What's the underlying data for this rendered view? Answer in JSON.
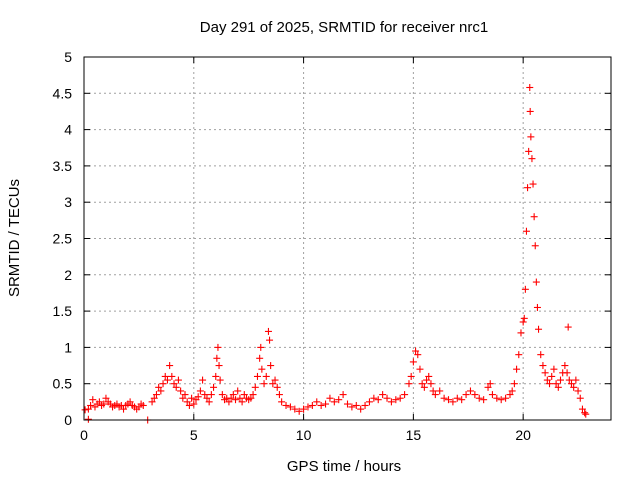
{
  "chart_data": {
    "type": "scatter",
    "title": "Day 291 of 2025, SRMTID for receiver nrc1",
    "xlabel": "GPS time / hours",
    "ylabel": "SRMTID / TECUs",
    "xlim": [
      0,
      24
    ],
    "ylim": [
      0,
      5
    ],
    "xticks": [
      0,
      5,
      10,
      15,
      20
    ],
    "xtick_labels": [
      "0",
      "5",
      "10",
      "15",
      "20"
    ],
    "yticks": [
      0,
      0.5,
      1,
      1.5,
      2,
      2.5,
      3,
      3.5,
      4,
      4.5,
      5
    ],
    "ytick_labels": [
      "0",
      "0.5",
      "1",
      "1.5",
      "2",
      "2.5",
      "3",
      "3.5",
      "4",
      "4.5",
      "5"
    ],
    "grid": true,
    "marker": "+",
    "series": [
      {
        "name": "nrc1",
        "color": "#ff0000",
        "points": [
          [
            0.05,
            0.14
          ],
          [
            0.2,
            0.15
          ],
          [
            0.3,
            0.2
          ],
          [
            0.4,
            0.28
          ],
          [
            0.5,
            0.18
          ],
          [
            0.6,
            0.22
          ],
          [
            0.7,
            0.25
          ],
          [
            0.8,
            0.2
          ],
          [
            0.9,
            0.22
          ],
          [
            1.0,
            0.3
          ],
          [
            1.1,
            0.25
          ],
          [
            1.2,
            0.22
          ],
          [
            1.3,
            0.18
          ],
          [
            1.4,
            0.2
          ],
          [
            1.5,
            0.22
          ],
          [
            1.6,
            0.18
          ],
          [
            1.7,
            0.2
          ],
          [
            1.8,
            0.15
          ],
          [
            1.9,
            0.2
          ],
          [
            2.0,
            0.22
          ],
          [
            2.1,
            0.25
          ],
          [
            2.2,
            0.2
          ],
          [
            2.3,
            0.18
          ],
          [
            2.4,
            0.15
          ],
          [
            2.5,
            0.18
          ],
          [
            2.6,
            0.22
          ],
          [
            2.7,
            0.2
          ],
          [
            0.2,
            0.01
          ],
          [
            2.9,
            0.0
          ],
          [
            3.1,
            0.25
          ],
          [
            3.2,
            0.3
          ],
          [
            3.3,
            0.35
          ],
          [
            3.4,
            0.45
          ],
          [
            3.5,
            0.4
          ],
          [
            3.6,
            0.5
          ],
          [
            3.7,
            0.6
          ],
          [
            3.8,
            0.55
          ],
          [
            3.9,
            0.75
          ],
          [
            4.0,
            0.6
          ],
          [
            4.1,
            0.5
          ],
          [
            4.2,
            0.45
          ],
          [
            4.3,
            0.55
          ],
          [
            4.4,
            0.4
          ],
          [
            4.5,
            0.3
          ],
          [
            4.6,
            0.35
          ],
          [
            4.7,
            0.25
          ],
          [
            4.8,
            0.2
          ],
          [
            4.9,
            0.3
          ],
          [
            5.0,
            0.22
          ],
          [
            5.1,
            0.28
          ],
          [
            5.2,
            0.32
          ],
          [
            5.3,
            0.4
          ],
          [
            5.4,
            0.55
          ],
          [
            5.5,
            0.35
          ],
          [
            5.6,
            0.3
          ],
          [
            5.7,
            0.25
          ],
          [
            5.8,
            0.35
          ],
          [
            5.9,
            0.45
          ],
          [
            6.0,
            0.6
          ],
          [
            6.05,
            0.85
          ],
          [
            6.1,
            1.0
          ],
          [
            6.15,
            0.75
          ],
          [
            6.2,
            0.55
          ],
          [
            6.3,
            0.35
          ],
          [
            6.4,
            0.28
          ],
          [
            6.5,
            0.3
          ],
          [
            6.6,
            0.25
          ],
          [
            6.7,
            0.3
          ],
          [
            6.8,
            0.35
          ],
          [
            6.9,
            0.28
          ],
          [
            7.0,
            0.4
          ],
          [
            7.1,
            0.3
          ],
          [
            7.2,
            0.25
          ],
          [
            7.3,
            0.35
          ],
          [
            7.4,
            0.3
          ],
          [
            7.5,
            0.28
          ],
          [
            7.6,
            0.3
          ],
          [
            7.7,
            0.35
          ],
          [
            7.8,
            0.45
          ],
          [
            7.9,
            0.6
          ],
          [
            8.0,
            0.85
          ],
          [
            8.05,
            1.0
          ],
          [
            8.1,
            0.7
          ],
          [
            8.2,
            0.5
          ],
          [
            8.3,
            0.6
          ],
          [
            8.4,
            1.22
          ],
          [
            8.45,
            1.1
          ],
          [
            8.5,
            0.75
          ],
          [
            8.6,
            0.5
          ],
          [
            8.7,
            0.55
          ],
          [
            8.8,
            0.45
          ],
          [
            8.9,
            0.35
          ],
          [
            9.0,
            0.25
          ],
          [
            9.2,
            0.2
          ],
          [
            9.4,
            0.18
          ],
          [
            9.6,
            0.15
          ],
          [
            9.8,
            0.12
          ],
          [
            10.0,
            0.15
          ],
          [
            10.2,
            0.18
          ],
          [
            10.4,
            0.2
          ],
          [
            10.6,
            0.25
          ],
          [
            10.8,
            0.2
          ],
          [
            11.0,
            0.22
          ],
          [
            11.2,
            0.3
          ],
          [
            11.4,
            0.25
          ],
          [
            11.6,
            0.28
          ],
          [
            11.8,
            0.35
          ],
          [
            12.0,
            0.22
          ],
          [
            12.2,
            0.18
          ],
          [
            12.4,
            0.2
          ],
          [
            12.6,
            0.15
          ],
          [
            12.8,
            0.2
          ],
          [
            13.0,
            0.25
          ],
          [
            13.2,
            0.3
          ],
          [
            13.4,
            0.28
          ],
          [
            13.6,
            0.35
          ],
          [
            13.8,
            0.3
          ],
          [
            14.0,
            0.25
          ],
          [
            14.2,
            0.28
          ],
          [
            14.4,
            0.3
          ],
          [
            14.6,
            0.35
          ],
          [
            14.8,
            0.5
          ],
          [
            14.9,
            0.6
          ],
          [
            15.0,
            0.8
          ],
          [
            15.1,
            0.95
          ],
          [
            15.2,
            0.9
          ],
          [
            15.3,
            0.7
          ],
          [
            15.4,
            0.5
          ],
          [
            15.5,
            0.45
          ],
          [
            15.6,
            0.55
          ],
          [
            15.7,
            0.6
          ],
          [
            15.8,
            0.5
          ],
          [
            15.9,
            0.4
          ],
          [
            16.0,
            0.35
          ],
          [
            16.2,
            0.4
          ],
          [
            16.4,
            0.3
          ],
          [
            16.6,
            0.28
          ],
          [
            16.8,
            0.25
          ],
          [
            17.0,
            0.3
          ],
          [
            17.2,
            0.28
          ],
          [
            17.4,
            0.35
          ],
          [
            17.6,
            0.4
          ],
          [
            17.8,
            0.35
          ],
          [
            18.0,
            0.3
          ],
          [
            18.2,
            0.28
          ],
          [
            18.4,
            0.45
          ],
          [
            18.5,
            0.5
          ],
          [
            18.6,
            0.35
          ],
          [
            18.8,
            0.3
          ],
          [
            19.0,
            0.28
          ],
          [
            19.2,
            0.3
          ],
          [
            19.4,
            0.35
          ],
          [
            19.5,
            0.4
          ],
          [
            19.6,
            0.5
          ],
          [
            19.7,
            0.7
          ],
          [
            19.8,
            0.9
          ],
          [
            19.9,
            1.2
          ],
          [
            20.0,
            1.35
          ],
          [
            20.05,
            1.4
          ],
          [
            20.1,
            1.8
          ],
          [
            20.15,
            2.6
          ],
          [
            20.2,
            3.2
          ],
          [
            20.25,
            3.7
          ],
          [
            20.3,
            4.58
          ],
          [
            20.32,
            4.25
          ],
          [
            20.35,
            3.9
          ],
          [
            20.4,
            3.6
          ],
          [
            20.45,
            3.25
          ],
          [
            20.5,
            2.8
          ],
          [
            20.55,
            2.4
          ],
          [
            20.6,
            1.9
          ],
          [
            20.65,
            1.55
          ],
          [
            20.7,
            1.25
          ],
          [
            20.8,
            0.9
          ],
          [
            20.9,
            0.75
          ],
          [
            21.0,
            0.65
          ],
          [
            21.1,
            0.55
          ],
          [
            21.2,
            0.5
          ],
          [
            21.3,
            0.6
          ],
          [
            21.4,
            0.7
          ],
          [
            21.5,
            0.5
          ],
          [
            21.6,
            0.45
          ],
          [
            21.7,
            0.55
          ],
          [
            21.8,
            0.65
          ],
          [
            21.9,
            0.75
          ],
          [
            22.0,
            0.65
          ],
          [
            22.05,
            1.28
          ],
          [
            22.1,
            0.55
          ],
          [
            22.2,
            0.5
          ],
          [
            22.3,
            0.45
          ],
          [
            22.4,
            0.55
          ],
          [
            22.5,
            0.4
          ],
          [
            22.6,
            0.3
          ],
          [
            22.7,
            0.15
          ],
          [
            22.8,
            0.1
          ],
          [
            22.85,
            0.08
          ]
        ]
      }
    ]
  }
}
